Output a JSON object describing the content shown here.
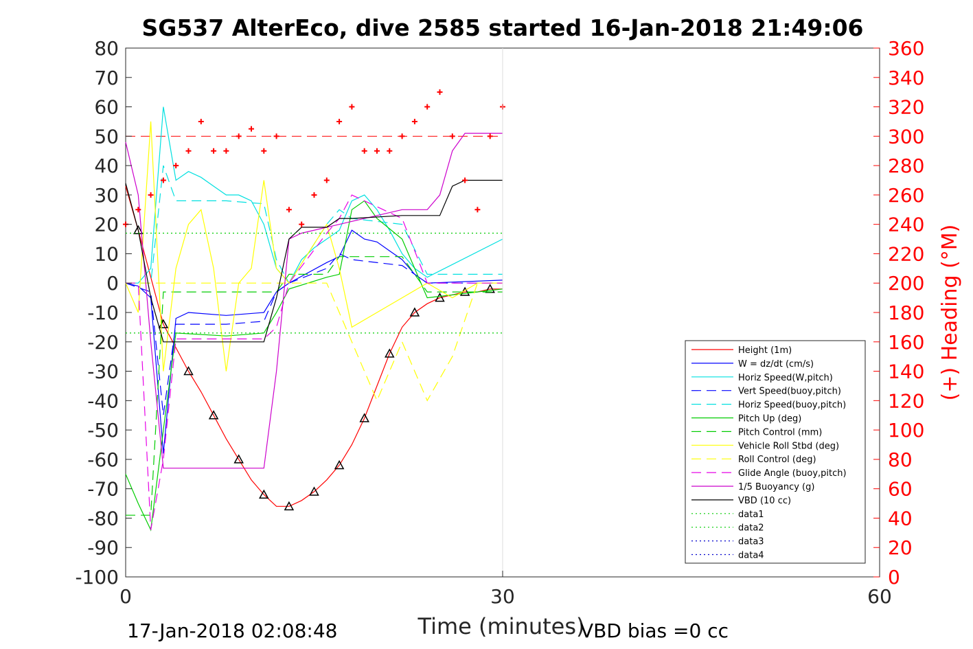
{
  "colors": {
    "height": "#ff0000",
    "w": "#0000ff",
    "horiz": "#00e0e0",
    "pitch": "#00cc00",
    "roll": "#ffff00",
    "glide": "#e600e6",
    "buoyancy": "#cc00cc",
    "vbd": "#000000",
    "heading": "#ff0000",
    "axis": "#262626"
  },
  "chart_data": {
    "type": "line",
    "title": "SG537 AlterEco, dive 2585 started 16-Jan-2018 21:49:06",
    "xlabel": "Time (minutes)",
    "ylabel": "",
    "y2label": "(+) Heading (°M)",
    "xlim": [
      0,
      60
    ],
    "ylim": [
      -100,
      80
    ],
    "y2lim": [
      0,
      360
    ],
    "xticks": [
      "0",
      "30",
      "60"
    ],
    "yticks": [
      "80",
      "70",
      "60",
      "50",
      "40",
      "30",
      "20",
      "10",
      "0",
      "-10",
      "-20",
      "-30",
      "-40",
      "-50",
      "-60",
      "-70",
      "-80",
      "-90",
      "-100"
    ],
    "y2ticks": [
      "360",
      "340",
      "320",
      "300",
      "280",
      "260",
      "240",
      "220",
      "200",
      "180",
      "160",
      "140",
      "120",
      "100",
      "80",
      "60",
      "40",
      "20",
      "0"
    ],
    "footer_left": "17-Jan-2018 02:08:48",
    "footer_right": "VBD bias =0 cc",
    "legend_position": "lower-right",
    "legend": [
      {
        "label": "Height (1m)",
        "color": "#ff0000",
        "style": "solid"
      },
      {
        "label": "W = dz/dt (cm/s)",
        "color": "#0000ff",
        "style": "solid"
      },
      {
        "label": "Horiz Speed(W,pitch)",
        "color": "#00e0e0",
        "style": "solid"
      },
      {
        "label": "Vert Speed(buoy,pitch)",
        "color": "#0000ff",
        "style": "dashed"
      },
      {
        "label": "Horiz Speed(buoy,pitch)",
        "color": "#00e0e0",
        "style": "dashed"
      },
      {
        "label": "Pitch Up (deg)",
        "color": "#00cc00",
        "style": "solid"
      },
      {
        "label": "Pitch Control (mm)",
        "color": "#00cc00",
        "style": "dashed"
      },
      {
        "label": "Vehicle Roll Stbd (deg)",
        "color": "#ffff00",
        "style": "solid"
      },
      {
        "label": "Roll Control (deg)",
        "color": "#ffff00",
        "style": "dashed"
      },
      {
        "label": "Glide Angle (buoy,pitch)",
        "color": "#e600e6",
        "style": "dashed"
      },
      {
        "label": "1/5 Buoyancy (g)",
        "color": "#cc00cc",
        "style": "solid"
      },
      {
        "label": "VBD (10 cc)",
        "color": "#000000",
        "style": "solid"
      },
      {
        "label": "data1",
        "color": "#00cc00",
        "style": "dotted"
      },
      {
        "label": "data2",
        "color": "#00cc00",
        "style": "dotted"
      },
      {
        "label": "data3",
        "color": "#0000cc",
        "style": "dotted"
      },
      {
        "label": "data4",
        "color": "#0000cc",
        "style": "dotted"
      }
    ],
    "series": [
      {
        "name": "Height (1m)",
        "x": [
          0,
          1,
          2,
          3,
          4,
          5,
          6,
          7,
          8,
          9,
          10,
          11,
          12,
          13,
          14,
          15,
          16,
          17,
          18,
          19,
          20,
          21,
          22,
          23,
          24,
          25,
          26,
          27,
          28,
          29,
          30
        ],
        "values": [
          33,
          18,
          2,
          -14,
          -22,
          -30,
          -37,
          -45,
          -53,
          -60,
          -67,
          -72,
          -76,
          -76,
          -74,
          -71,
          -67,
          -62,
          -55,
          -46,
          -35,
          -24,
          -15,
          -10,
          -7,
          -5,
          -4,
          -3,
          -3,
          -2,
          -2
        ]
      },
      {
        "name": "W = dz/dt (cm/s)",
        "x": [
          0,
          1,
          2,
          3,
          4,
          5,
          8,
          11,
          12,
          13,
          16,
          17,
          18,
          19,
          20,
          21,
          22,
          23,
          24,
          30
        ],
        "values": [
          0,
          -1,
          -5,
          -58,
          -12,
          -10,
          -11,
          -10,
          -3,
          0,
          7,
          9,
          18,
          15,
          14,
          11,
          8,
          3,
          0,
          1
        ]
      },
      {
        "name": "Horiz Speed(W,pitch)",
        "x": [
          0,
          1,
          2,
          3,
          4,
          5,
          6,
          7,
          8,
          9,
          10,
          11,
          12,
          13,
          14,
          15,
          16,
          17,
          18,
          19,
          20,
          21,
          22,
          23,
          24,
          30
        ],
        "values": [
          0,
          0,
          5,
          60,
          35,
          38,
          36,
          33,
          30,
          30,
          28,
          20,
          5,
          0,
          8,
          12,
          15,
          18,
          28,
          30,
          25,
          18,
          10,
          5,
          2,
          15
        ]
      },
      {
        "name": "Vert Speed(buoy,pitch)",
        "x": [
          0,
          2,
          3,
          4,
          8,
          11,
          12,
          13,
          16,
          17,
          18,
          22,
          24,
          30
        ],
        "values": [
          0,
          -3,
          -45,
          -14,
          -14,
          -13,
          -3,
          0,
          5,
          10,
          8,
          6,
          0,
          0
        ]
      },
      {
        "name": "Horiz Speed(buoy,pitch)",
        "x": [
          0,
          2,
          3,
          4,
          8,
          11,
          12,
          13,
          16,
          17,
          18,
          22,
          24,
          30
        ],
        "values": [
          0,
          0,
          40,
          28,
          28,
          27,
          8,
          0,
          20,
          25,
          22,
          20,
          3,
          3
        ]
      },
      {
        "name": "Pitch Up (deg)",
        "x": [
          0,
          1,
          2,
          3,
          4,
          8,
          11,
          12,
          13,
          16,
          17,
          18,
          19,
          20,
          22,
          24,
          30
        ],
        "values": [
          -65,
          -75,
          -84,
          -50,
          -17,
          -18,
          -17,
          -10,
          -2,
          2,
          3,
          25,
          28,
          22,
          15,
          -5,
          -2
        ]
      },
      {
        "name": "Pitch Control (mm)",
        "x": [
          0,
          1,
          2,
          3,
          4,
          11,
          12,
          13,
          16,
          17,
          22,
          24,
          30
        ],
        "values": [
          -79,
          -79,
          -79,
          -3,
          -3,
          -3,
          -3,
          3,
          3,
          9,
          9,
          -3,
          -3
        ]
      },
      {
        "name": "Vehicle Roll Stbd (deg)",
        "x": [
          0,
          1,
          2,
          3,
          4,
          5,
          6,
          7,
          8,
          9,
          10,
          11,
          12,
          13,
          16,
          17,
          18,
          20,
          22,
          24,
          26,
          28,
          30
        ],
        "values": [
          0,
          -10,
          55,
          -30,
          5,
          20,
          25,
          5,
          -30,
          0,
          5,
          35,
          5,
          0,
          20,
          5,
          -15,
          -10,
          -5,
          0,
          -5,
          0,
          0
        ]
      },
      {
        "name": "Roll Control (deg)",
        "x": [
          0,
          2,
          3,
          4,
          6,
          8,
          10,
          12,
          16,
          18,
          20,
          22,
          24,
          26,
          28,
          30
        ],
        "values": [
          0,
          0,
          0,
          0,
          0,
          0,
          0,
          0,
          0,
          -20,
          -40,
          -20,
          -40,
          -25,
          0,
          0
        ]
      },
      {
        "name": "Glide Angle (buoy,pitch)",
        "x": [
          0,
          1,
          2,
          3,
          4,
          11,
          12,
          13,
          16,
          17,
          18,
          22,
          24,
          30
        ],
        "values": [
          0,
          0,
          -84,
          -60,
          -19,
          -19,
          -15,
          0,
          17,
          22,
          30,
          22,
          0,
          0
        ]
      },
      {
        "name": "1/5 Buoyancy (g)",
        "x": [
          0,
          1,
          2,
          3,
          4,
          11,
          12,
          13,
          14,
          22,
          24,
          25,
          26,
          27,
          30
        ],
        "values": [
          48,
          30,
          -20,
          -63,
          -63,
          -63,
          -30,
          15,
          17,
          25,
          25,
          30,
          45,
          51,
          51
        ]
      },
      {
        "name": "VBD (10 cc)",
        "x": [
          0,
          1,
          2,
          3,
          4,
          11,
          12,
          13,
          14,
          16,
          17,
          18,
          22,
          25,
          26,
          27,
          30
        ],
        "values": [
          34,
          18,
          -5,
          -20,
          -20,
          -20,
          -5,
          15,
          19,
          19,
          22,
          22,
          23,
          23,
          33,
          35,
          35
        ]
      },
      {
        "name": "data1",
        "x": [
          0,
          30
        ],
        "values": [
          17,
          17
        ]
      },
      {
        "name": "data2",
        "x": [
          0,
          30
        ],
        "values": [
          -17,
          -17
        ]
      },
      {
        "name": "Heading",
        "axis": "right",
        "x": [
          0,
          1,
          2,
          3,
          4,
          5,
          6,
          7,
          8,
          9,
          10,
          11,
          12,
          13,
          14,
          15,
          16,
          17,
          18,
          19,
          20,
          21,
          22,
          23,
          24,
          25,
          26,
          27,
          28,
          29,
          30
        ],
        "values": [
          240,
          250,
          260,
          270,
          280,
          290,
          310,
          290,
          290,
          300,
          305,
          290,
          300,
          250,
          240,
          260,
          270,
          310,
          320,
          290,
          290,
          290,
          300,
          310,
          320,
          330,
          300,
          270,
          250,
          300,
          320
        ]
      }
    ],
    "reference_lines": [
      {
        "axis": "right",
        "value": 300,
        "color": "#ff0000",
        "style": "dashed"
      }
    ]
  }
}
